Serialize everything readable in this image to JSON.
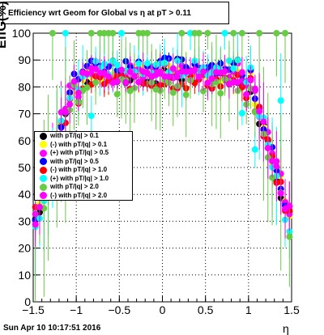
{
  "title": "Efficiency wrt Geom for Global vs   η at pT > 0.11",
  "footer": "Sun Apr 10 10:17:51 2016",
  "xlabel": "η",
  "ylabel": "EffG(%)",
  "chart_data": {
    "type": "scatter",
    "title": "Efficiency wrt Geom for Global vs   η at pT > 0.11",
    "xlabel": "η",
    "ylabel": "EffG(%)",
    "xlim": [
      -1.5,
      1.5
    ],
    "ylim": [
      0,
      100
    ],
    "x_ticks": [
      "−1.5",
      "−1",
      "−0.5",
      "0",
      "0.5",
      "1",
      "1.5"
    ],
    "y_ticks": [
      "0",
      "10",
      "20",
      "30",
      "40",
      "50",
      "60",
      "70",
      "80",
      "90",
      "100"
    ],
    "grid": true,
    "legend_position": "middle-left",
    "series": [
      {
        "name": "with pT/|q| > 0.1",
        "color": "#000000",
        "plateau": 84,
        "edge": 28,
        "err": 3
      },
      {
        "name": "(-) with pT/|q| > 0.1",
        "color": "#ffff00",
        "plateau": 85,
        "edge": 30,
        "err": 5
      },
      {
        "name": "(+) with pT/|q| > 0.5",
        "color": "#ff00ff",
        "plateau": 86,
        "edge": 33,
        "err": 4
      },
      {
        "name": "with pT/|q| > 0.5",
        "color": "#0000ff",
        "plateau": 88,
        "edge": 31,
        "err": 3
      },
      {
        "name": "(-) with pT/|q| > 1.0",
        "color": "#ff0000",
        "plateau": 82,
        "edge": 29,
        "err": 4
      },
      {
        "name": "(+) with pT/|q| > 1.0",
        "color": "#00ffff",
        "plateau": 87,
        "edge": 25,
        "err": 8
      },
      {
        "name": "with pT/|q| > 2.0",
        "color": "#66cc44",
        "plateau": 80,
        "edge": 24,
        "err": 12
      },
      {
        "name": "(-) with pT/|q| > 2.0",
        "color": "#ff00ff",
        "plateau": 84,
        "edge": 30,
        "err": 5
      }
    ]
  }
}
